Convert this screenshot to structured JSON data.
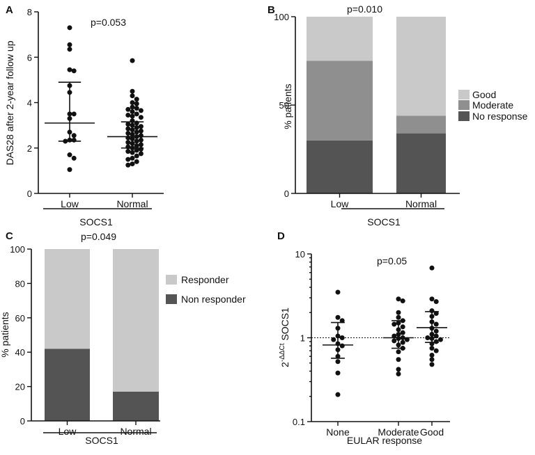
{
  "colors": {
    "good": "#c9c9c9",
    "moderate": "#8f8f8f",
    "no_response": "#545454",
    "responder": "#c9c9c9",
    "non_responder": "#545454",
    "ink": "#111111"
  },
  "chart_data": [
    {
      "panel": "A",
      "type": "scatter",
      "title": "",
      "annotation": "p=0.053",
      "ylabel": "DAS28 after 2-year follow up",
      "xlabel": "SOCS1",
      "categories": [
        "Low",
        "Normal"
      ],
      "ylim": [
        0,
        8
      ],
      "yticks": [
        0,
        2,
        4,
        6,
        8
      ],
      "points": [
        [
          7.3,
          6.55,
          6.35,
          5.45,
          5.4,
          4.75,
          4.45,
          3.5,
          3.5,
          3.3,
          2.7,
          2.55,
          2.35,
          2.35,
          2.3,
          1.7,
          1.55,
          1.05
        ],
        [
          5.85,
          4.5,
          4.3,
          4.15,
          4.0,
          3.95,
          3.8,
          3.75,
          3.7,
          3.65,
          3.6,
          3.5,
          3.45,
          3.4,
          3.35,
          3.2,
          3.1,
          3.05,
          3.0,
          2.95,
          2.9,
          2.85,
          2.8,
          2.75,
          2.7,
          2.65,
          2.6,
          2.55,
          2.5,
          2.45,
          2.4,
          2.35,
          2.3,
          2.25,
          2.2,
          2.15,
          2.1,
          2.05,
          2.0,
          1.95,
          1.9,
          1.85,
          1.8,
          1.75,
          1.65,
          1.55,
          1.5,
          1.4,
          1.3,
          1.25
        ]
      ],
      "summary": [
        {
          "center": 3.1,
          "low": 2.3,
          "high": 4.9
        },
        {
          "center": 2.5,
          "low": 2.0,
          "high": 3.15
        }
      ]
    },
    {
      "panel": "B",
      "type": "bar",
      "stacked": true,
      "annotation": "p=0.010",
      "ylabel": "% patients",
      "xlabel": "SOCS1",
      "categories": [
        "Low",
        "Normal"
      ],
      "ylim": [
        0,
        100
      ],
      "yticks": [
        0,
        50,
        100
      ],
      "series": [
        {
          "name": "No response",
          "values": [
            30,
            34
          ]
        },
        {
          "name": "Moderate",
          "values": [
            45,
            10
          ]
        },
        {
          "name": "Good",
          "values": [
            25,
            56
          ]
        }
      ],
      "legend": [
        "Good",
        "Moderate",
        "No response"
      ]
    },
    {
      "panel": "C",
      "type": "bar",
      "stacked": true,
      "annotation": "p=0.049",
      "ylabel": "% patients",
      "xlabel": "SOCS1",
      "categories": [
        "Low",
        "Normal"
      ],
      "ylim": [
        0,
        100
      ],
      "yticks": [
        0,
        20,
        40,
        60,
        80,
        100
      ],
      "series": [
        {
          "name": "Non responder",
          "values": [
            42,
            17
          ]
        },
        {
          "name": "Responder",
          "values": [
            58,
            83
          ]
        }
      ],
      "legend": [
        "Responder",
        "Non responder"
      ]
    },
    {
      "panel": "D",
      "type": "scatter",
      "yscale": "log",
      "annotation": "p=0.05",
      "ylabel_base": "2",
      "ylabel_exp": "-ΔΔCt",
      "ylabel_rest": " SOCS1",
      "xlabel": "EULAR response",
      "categories": [
        "None",
        "Moderate",
        "Good"
      ],
      "ylim": [
        0.1,
        10
      ],
      "yticks": [
        0.1,
        1,
        10
      ],
      "yticklabels": [
        "0.1",
        "1",
        "10"
      ],
      "reference_line": 1,
      "points": [
        [
          3.5,
          1.75,
          1.6,
          1.3,
          1.05,
          1.0,
          0.95,
          0.85,
          0.8,
          0.72,
          0.6,
          0.52,
          0.38,
          0.21
        ],
        [
          2.9,
          2.75,
          2.0,
          1.75,
          1.6,
          1.5,
          1.45,
          1.35,
          1.25,
          1.15,
          1.1,
          1.05,
          1.0,
          0.98,
          0.95,
          0.92,
          0.88,
          0.82,
          0.75,
          0.68,
          0.55,
          0.42,
          0.37
        ],
        [
          6.8,
          2.9,
          2.7,
          2.1,
          1.95,
          1.8,
          1.55,
          1.45,
          1.3,
          1.2,
          1.1,
          1.05,
          1.0,
          0.98,
          0.95,
          0.9,
          0.85,
          0.75,
          0.7,
          0.62,
          0.55,
          0.48
        ]
      ],
      "summary": [
        {
          "center": 0.82,
          "low": 0.57,
          "high": 1.52
        },
        {
          "center": 1.0,
          "low": 0.75,
          "high": 1.6
        },
        {
          "center": 1.32,
          "low": 0.88,
          "high": 2.05
        }
      ]
    }
  ]
}
